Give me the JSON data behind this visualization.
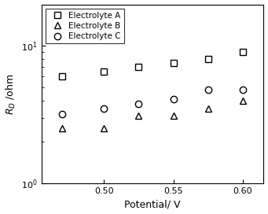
{
  "electrolyte_A": {
    "x": [
      0.47,
      0.5,
      0.525,
      0.55,
      0.575,
      0.6
    ],
    "y": [
      6.0,
      6.5,
      7.0,
      7.5,
      8.0,
      9.0
    ],
    "marker": "s",
    "label": "Electrolyte A"
  },
  "electrolyte_B": {
    "x": [
      0.47,
      0.5,
      0.525,
      0.55,
      0.575,
      0.6
    ],
    "y": [
      2.5,
      2.5,
      3.1,
      3.1,
      3.5,
      4.0
    ],
    "marker": "^",
    "label": "Electrolyte B"
  },
  "electrolyte_C": {
    "x": [
      0.47,
      0.5,
      0.525,
      0.55,
      0.575,
      0.6
    ],
    "y": [
      3.2,
      3.5,
      3.8,
      4.1,
      4.8,
      4.8
    ],
    "marker": "o",
    "label": "Electrolyte C"
  },
  "xlabel": "Potential/ V",
  "ylabel": "$R_D$ /ohm",
  "xlim": [
    0.455,
    0.615
  ],
  "ylim": [
    1.0,
    20.0
  ],
  "xticks": [
    0.5,
    0.55,
    0.6
  ],
  "color": "black",
  "markersize": 6,
  "legend_loc": "upper left",
  "background_color": "#ffffff"
}
